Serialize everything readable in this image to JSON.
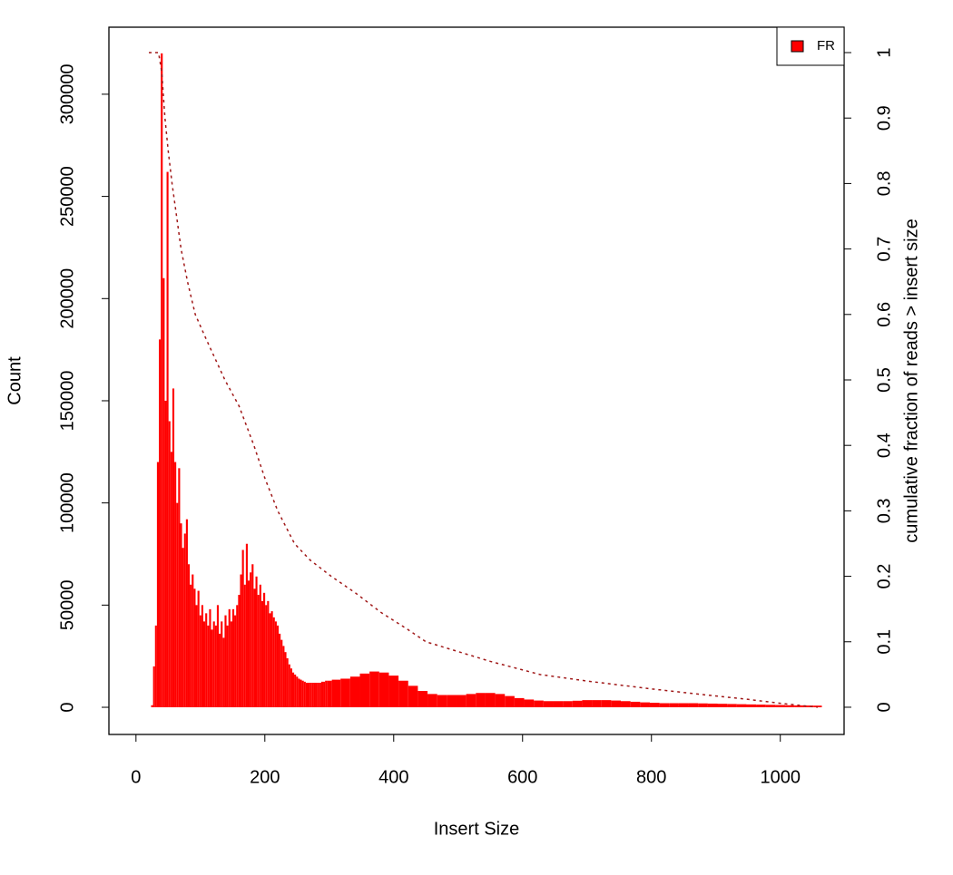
{
  "chart_data": {
    "type": "bar",
    "x_label": "Insert Size",
    "y_label": "Count",
    "y2_label": "cumulative fraction of reads > insert size",
    "xlim": [
      -42,
      1099
    ],
    "ylim": [
      -13300,
      332800
    ],
    "y2lim": [
      -0.0416,
      1.0388
    ],
    "xticks": [
      0,
      200,
      400,
      600,
      800,
      1000
    ],
    "yticks": [
      0,
      50000,
      100000,
      150000,
      200000,
      250000,
      300000
    ],
    "y2ticks": [
      0,
      0.1,
      0.2,
      0.3,
      0.4,
      0.5,
      0.6,
      0.7,
      0.8,
      0.9,
      1
    ],
    "legend": "topright",
    "series": [
      {
        "name": "FR",
        "color": "#ff0000",
        "x": [
          22,
          25,
          28,
          31,
          34,
          37,
          40,
          43,
          46,
          49,
          52,
          55,
          58,
          61,
          64,
          67,
          70,
          73,
          76,
          79,
          82,
          85,
          88,
          91,
          94,
          97,
          100,
          103,
          106,
          109,
          112,
          115,
          118,
          121,
          124,
          127,
          130,
          133,
          136,
          139,
          142,
          145,
          148,
          151,
          154,
          157,
          160,
          163,
          166,
          169,
          172,
          175,
          178,
          181,
          184,
          187,
          190,
          193,
          196,
          199,
          202,
          205,
          208,
          211,
          214,
          217,
          220,
          223,
          226,
          229,
          232,
          235,
          238,
          241,
          244,
          247,
          250,
          253,
          256,
          259,
          262,
          265,
          268,
          271,
          274,
          277,
          280,
          283,
          286,
          289,
          292,
          295,
          298,
          310,
          325,
          340,
          355,
          370,
          385,
          400,
          415,
          430,
          445,
          460,
          475,
          490,
          505,
          520,
          535,
          550,
          565,
          580,
          595,
          610,
          625,
          640,
          655,
          670,
          685,
          700,
          715,
          730,
          745,
          760,
          775,
          790,
          805,
          820,
          835,
          850,
          865,
          880,
          895,
          910,
          925,
          940,
          955,
          970,
          985,
          1000,
          1015,
          1030,
          1045,
          1058
        ],
        "values": [
          0,
          1000,
          20000,
          40000,
          120000,
          180000,
          320000,
          210000,
          150000,
          262000,
          140000,
          125000,
          156000,
          120000,
          100000,
          117000,
          90000,
          78000,
          85000,
          92000,
          70000,
          60000,
          65000,
          58000,
          50000,
          57000,
          45000,
          50000,
          42000,
          46000,
          40000,
          48000,
          38000,
          42000,
          40000,
          50000,
          36000,
          42000,
          34000,
          45000,
          40000,
          48000,
          42000,
          48000,
          45000,
          50000,
          55000,
          65000,
          77000,
          60000,
          80000,
          62000,
          66000,
          70000,
          58000,
          64000,
          55000,
          60000,
          52000,
          56000,
          50000,
          52000,
          46000,
          47000,
          44000,
          42000,
          40000,
          36000,
          33000,
          30000,
          27000,
          24000,
          21000,
          19000,
          17000,
          16000,
          15000,
          14000,
          13500,
          13000,
          12500,
          12000,
          12000,
          12000,
          12000,
          12000,
          12000,
          12000,
          12000,
          12500,
          12500,
          13000,
          13000,
          13500,
          14000,
          15000,
          16500,
          17500,
          17000,
          15500,
          13000,
          10500,
          8000,
          6500,
          6000,
          6000,
          6000,
          6500,
          7000,
          7000,
          6500,
          5500,
          4500,
          3800,
          3300,
          3000,
          3000,
          3000,
          3200,
          3500,
          3500,
          3500,
          3300,
          3000,
          2700,
          2400,
          2200,
          2000,
          2000,
          2000,
          2000,
          1900,
          1800,
          1700,
          1600,
          1500,
          1400,
          1300,
          1200,
          1100,
          1000,
          900,
          850,
          800
        ]
      },
      {
        "type": "line",
        "axis": "y2",
        "color": "#a01818",
        "line_style": "dashed",
        "x": [
          20,
          35,
          40,
          45,
          50,
          56,
          63,
          70,
          80,
          92,
          110,
          138,
          160,
          183,
          200,
          220,
          246,
          270,
          303,
          340,
          380,
          420,
          450,
          500,
          550,
          627,
          700,
          800,
          873,
          950,
          1000,
          1058
        ],
        "values": [
          1,
          1,
          0.97,
          0.9,
          0.85,
          0.8,
          0.75,
          0.7,
          0.65,
          0.6,
          0.56,
          0.5,
          0.46,
          0.4,
          0.35,
          0.3,
          0.25,
          0.225,
          0.2,
          0.175,
          0.145,
          0.12,
          0.1,
          0.085,
          0.07,
          0.05,
          0.04,
          0.028,
          0.02,
          0.012,
          0.006,
          0
        ]
      }
    ]
  }
}
